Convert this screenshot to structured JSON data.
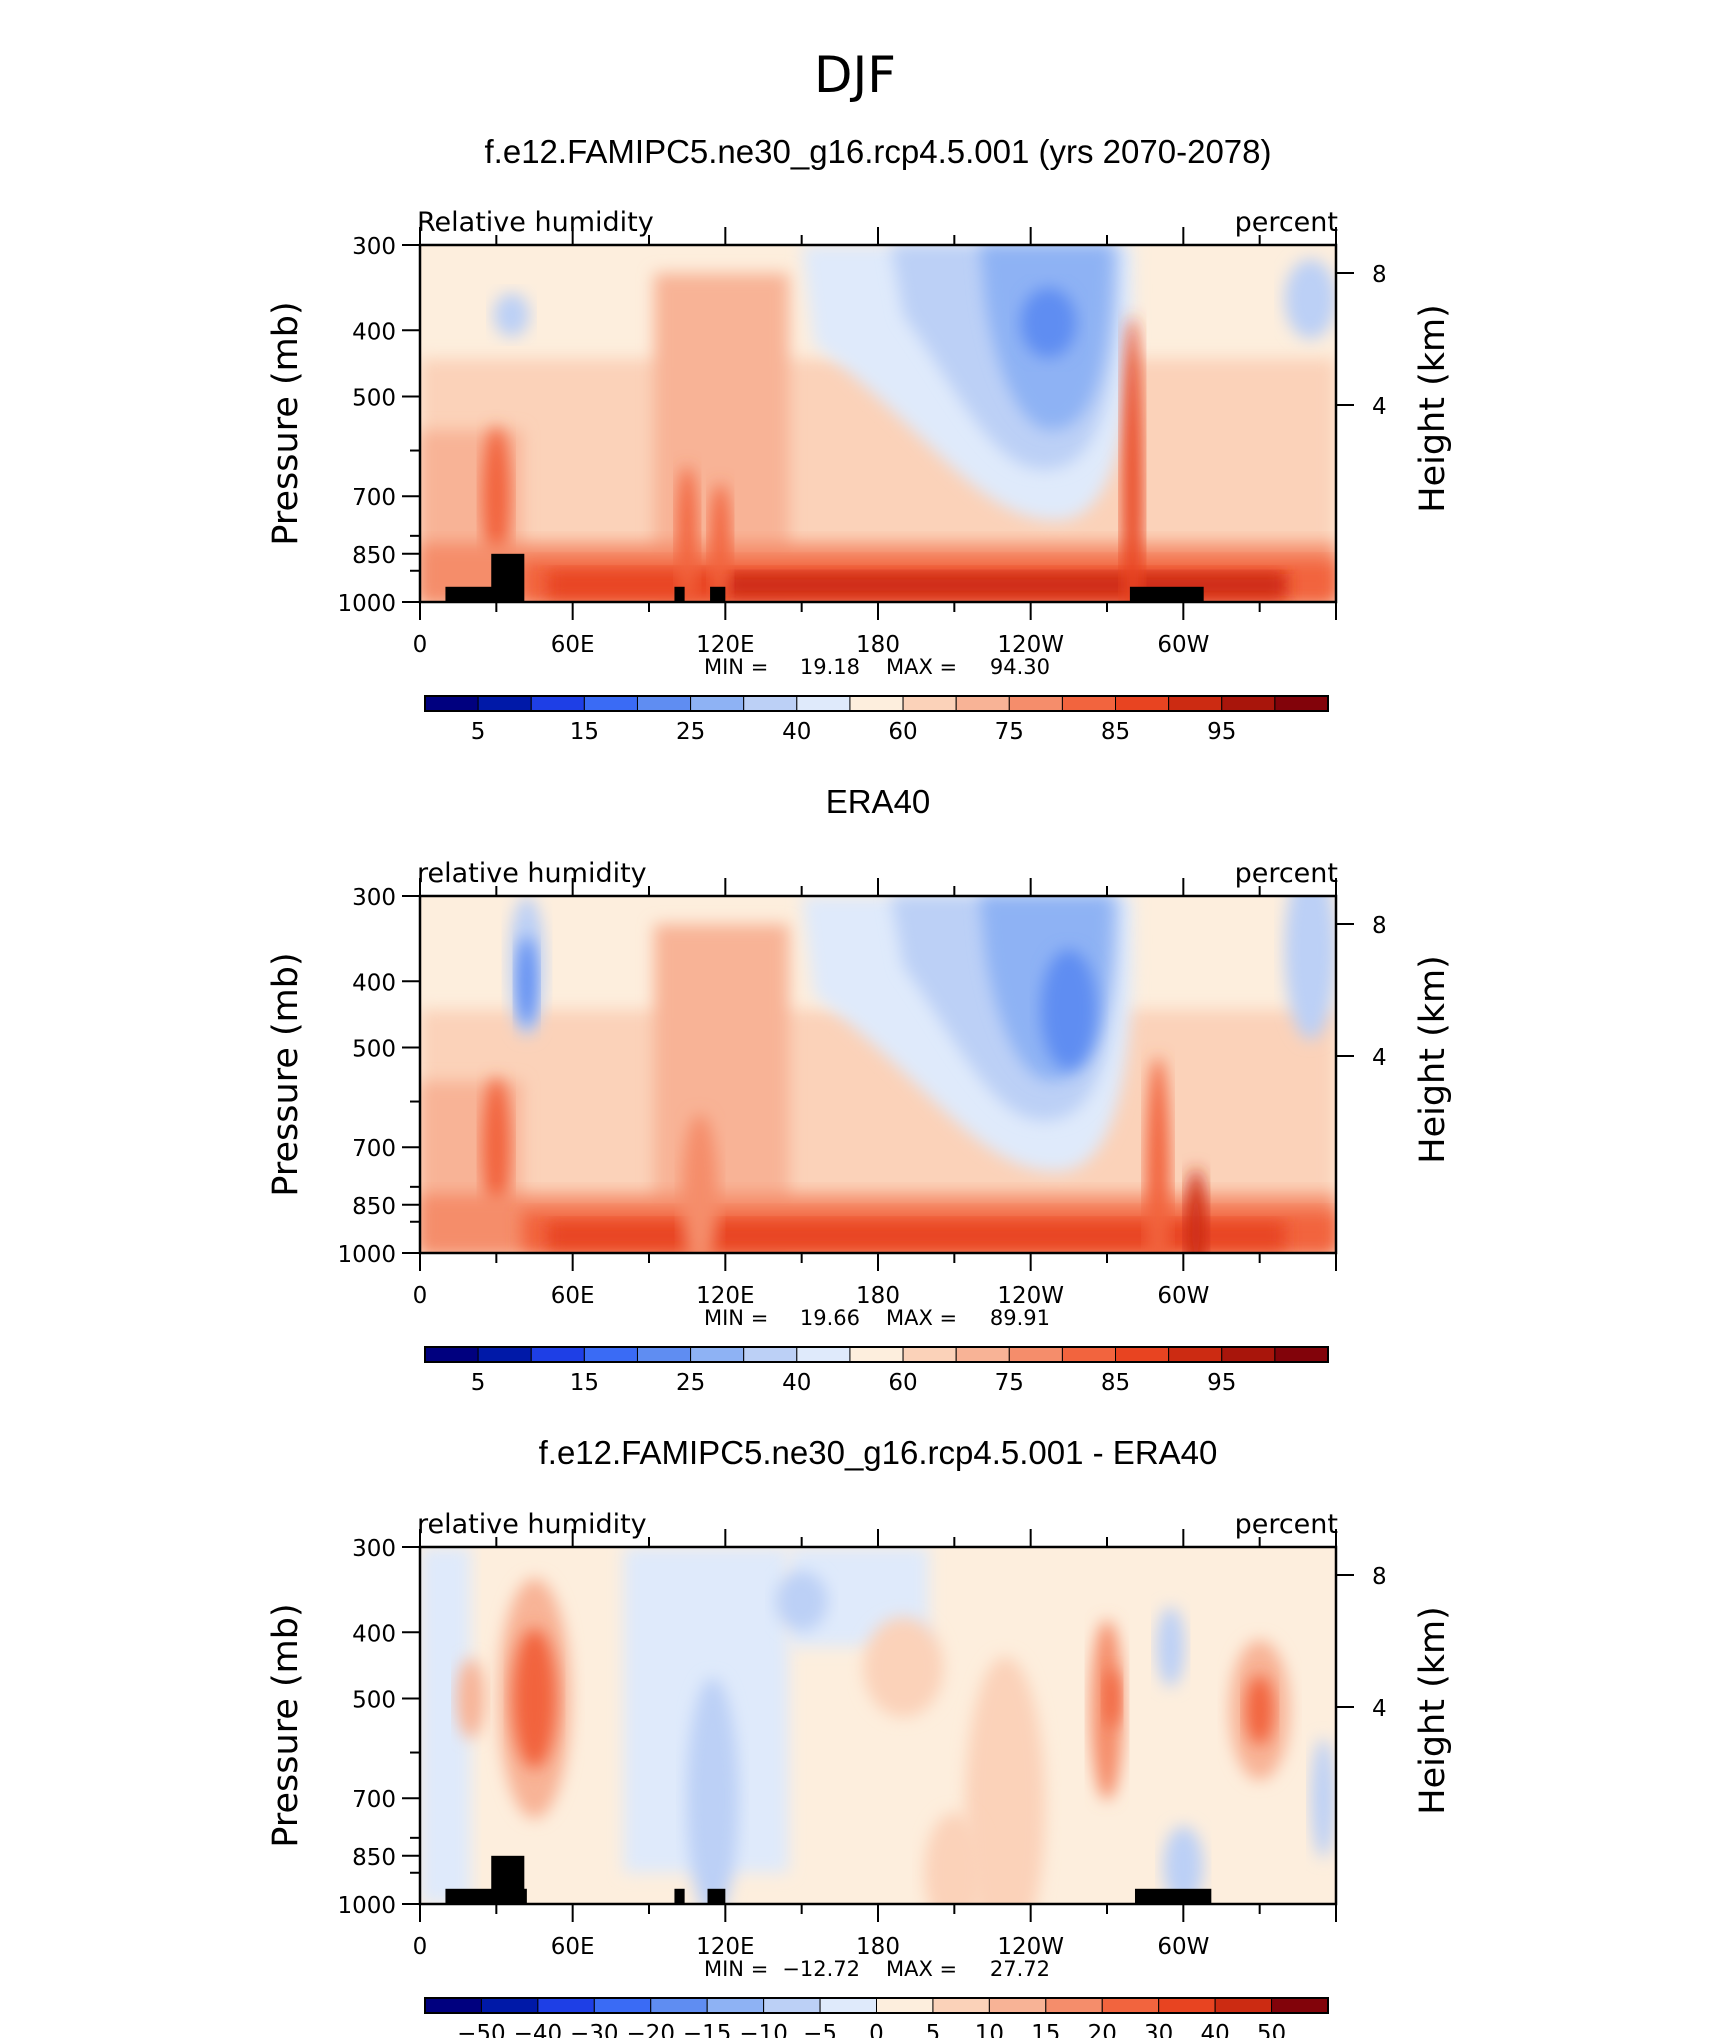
{
  "main_title": "DJF",
  "chart_data": [
    {
      "type": "heatmap",
      "title": "f.e12.FAMIPC5.ne30_g16.rcp4.5.001 (yrs 2070-2078)",
      "left_label": "Relative humidity",
      "right_label": "percent",
      "ylabel": "Pressure (mb)",
      "ylabel_right": "Height (km)",
      "x_ticks": [
        "0",
        "60E",
        "120E",
        "180",
        "120W",
        "60W"
      ],
      "x_tick_values": [
        0,
        60,
        120,
        180,
        240,
        300
      ],
      "xlim": [
        0,
        360
      ],
      "y_ticks": [
        "300",
        "400",
        "500",
        "700",
        "850",
        "1000"
      ],
      "y_tick_values": [
        300,
        400,
        500,
        700,
        850,
        1000
      ],
      "ylim": [
        300,
        1000
      ],
      "height_ticks": [
        "8",
        "4"
      ],
      "min_label": "MIN =",
      "min_value": "19.18",
      "max_label": "MAX =",
      "max_value": "94.30",
      "colorbar_labels": [
        "5",
        "15",
        "25",
        "40",
        "60",
        "75",
        "85",
        "95"
      ],
      "colorbar_colors": [
        "#00007f",
        "#0019a8",
        "#1e3fe6",
        "#3a6bf5",
        "#5f8df2",
        "#8eb2f4",
        "#bcd0f6",
        "#dfeafb",
        "#fdeedd",
        "#fbd2b9",
        "#f8b396",
        "#f58d6b",
        "#f2643e",
        "#e84421",
        "#cc2b12",
        "#a8150b",
        "#82030a"
      ],
      "land_mask_lon": [
        [
          10,
          40,
          950
        ],
        [
          28,
          41,
          850
        ],
        [
          100,
          104,
          950
        ],
        [
          114,
          120,
          950
        ],
        [
          279,
          308,
          950
        ]
      ]
    },
    {
      "type": "heatmap",
      "title": "ERA40",
      "left_label": "relative humidity",
      "right_label": "percent",
      "ylabel": "Pressure (mb)",
      "ylabel_right": "Height (km)",
      "x_ticks": [
        "0",
        "60E",
        "120E",
        "180",
        "120W",
        "60W"
      ],
      "x_tick_values": [
        0,
        60,
        120,
        180,
        240,
        300
      ],
      "xlim": [
        0,
        360
      ],
      "y_ticks": [
        "300",
        "400",
        "500",
        "700",
        "850",
        "1000"
      ],
      "y_tick_values": [
        300,
        400,
        500,
        700,
        850,
        1000
      ],
      "ylim": [
        300,
        1000
      ],
      "height_ticks": [
        "8",
        "4"
      ],
      "min_label": "MIN =",
      "min_value": "19.66",
      "max_label": "MAX =",
      "max_value": "89.91",
      "colorbar_labels": [
        "5",
        "15",
        "25",
        "40",
        "60",
        "75",
        "85",
        "95"
      ],
      "colorbar_colors": [
        "#00007f",
        "#0019a8",
        "#1e3fe6",
        "#3a6bf5",
        "#5f8df2",
        "#8eb2f4",
        "#bcd0f6",
        "#dfeafb",
        "#fdeedd",
        "#fbd2b9",
        "#f8b396",
        "#f58d6b",
        "#f2643e",
        "#e84421",
        "#cc2b12",
        "#a8150b",
        "#82030a"
      ],
      "land_mask_lon": []
    },
    {
      "type": "heatmap",
      "title": "f.e12.FAMIPC5.ne30_g16.rcp4.5.001 - ERA40",
      "left_label": "relative humidity",
      "right_label": "percent",
      "ylabel": "Pressure (mb)",
      "ylabel_right": "Height (km)",
      "x_ticks": [
        "0",
        "60E",
        "120E",
        "180",
        "120W",
        "60W"
      ],
      "x_tick_values": [
        0,
        60,
        120,
        180,
        240,
        300
      ],
      "xlim": [
        0,
        360
      ],
      "y_ticks": [
        "300",
        "400",
        "500",
        "700",
        "850",
        "1000"
      ],
      "y_tick_values": [
        300,
        400,
        500,
        700,
        850,
        1000
      ],
      "ylim": [
        300,
        1000
      ],
      "height_ticks": [
        "8",
        "4"
      ],
      "min_label": "MIN =",
      "min_value": "−12.72",
      "max_label": "MAX =",
      "max_value": "27.72",
      "colorbar_labels": [
        "−50",
        "−40",
        "−30",
        "−20",
        "−15",
        "−10",
        "−5",
        "0",
        "5",
        "10",
        "15",
        "20",
        "30",
        "40",
        "50"
      ],
      "colorbar_colors": [
        "#00007f",
        "#0019a8",
        "#1e3fe6",
        "#3a6bf5",
        "#5f8df2",
        "#8eb2f4",
        "#bcd0f6",
        "#dfeafb",
        "#fdeedd",
        "#fbd2b9",
        "#f8b396",
        "#f58d6b",
        "#f2643e",
        "#e84421",
        "#cc2b12",
        "#82030a"
      ],
      "land_mask_lon": [
        [
          10,
          42,
          950
        ],
        [
          28,
          41,
          850
        ],
        [
          100,
          104,
          950
        ],
        [
          113,
          120,
          950
        ],
        [
          281,
          311,
          950
        ]
      ]
    }
  ]
}
